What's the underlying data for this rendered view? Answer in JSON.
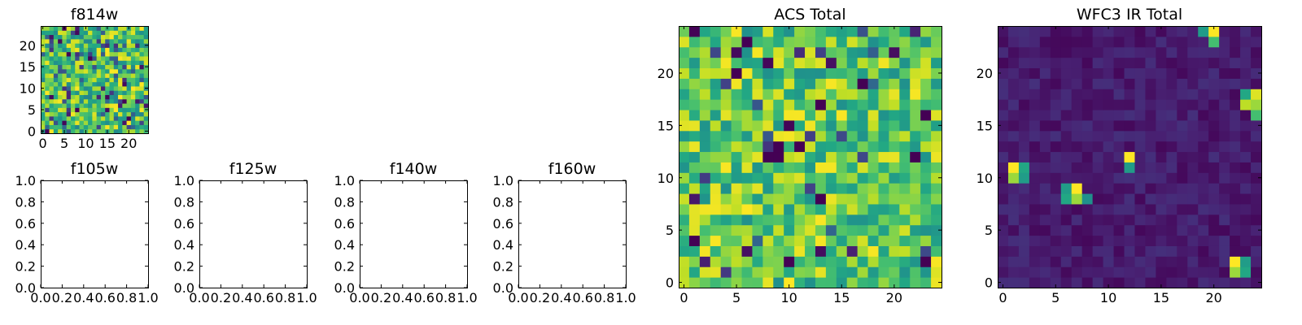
{
  "chart_data": [
    {
      "type": "heatmap",
      "title": "f814w",
      "grid_size": [
        25,
        25
      ],
      "xlim": [
        -0.5,
        24.5
      ],
      "ylim": [
        -0.5,
        24.5
      ],
      "xticks": [
        0,
        5,
        10,
        15,
        20
      ],
      "yticks": [
        0,
        5,
        10,
        15,
        20
      ],
      "colormap": "viridis",
      "pattern": "random high-contrast pixel noise, mostly green-yellow",
      "seed": 814,
      "distribution": {
        "base": 0.45,
        "spread": 0.55,
        "dark_fraction": 0.12
      }
    },
    {
      "type": "heatmap",
      "title": "f105w",
      "empty": true,
      "xlim": [
        0.0,
        1.0
      ],
      "ylim": [
        0.0,
        1.0
      ],
      "xticks": [
        "0.0",
        "0.2",
        "0.4",
        "0.6",
        "0.8",
        "1.0"
      ],
      "yticks": [
        "0.0",
        "0.2",
        "0.4",
        "0.6",
        "0.8",
        "1.0"
      ]
    },
    {
      "type": "heatmap",
      "title": "f125w",
      "empty": true,
      "xlim": [
        0.0,
        1.0
      ],
      "ylim": [
        0.0,
        1.0
      ],
      "xticks": [
        "0.0",
        "0.2",
        "0.4",
        "0.6",
        "0.8",
        "1.0"
      ],
      "yticks": [
        "0.0",
        "0.2",
        "0.4",
        "0.6",
        "0.8",
        "1.0"
      ]
    },
    {
      "type": "heatmap",
      "title": "f140w",
      "empty": true,
      "xlim": [
        0.0,
        1.0
      ],
      "ylim": [
        0.0,
        1.0
      ],
      "xticks": [
        "0.0",
        "0.2",
        "0.4",
        "0.6",
        "0.8",
        "1.0"
      ],
      "yticks": [
        "0.0",
        "0.2",
        "0.4",
        "0.6",
        "0.8",
        "1.0"
      ]
    },
    {
      "type": "heatmap",
      "title": "f160w",
      "empty": true,
      "xlim": [
        0.0,
        1.0
      ],
      "ylim": [
        0.0,
        1.0
      ],
      "xticks": [
        "0.0",
        "0.2",
        "0.4",
        "0.6",
        "0.8",
        "1.0"
      ],
      "yticks": [
        "0.0",
        "0.2",
        "0.4",
        "0.6",
        "0.8",
        "1.0"
      ]
    },
    {
      "type": "heatmap",
      "title": "ACS Total",
      "grid_size": [
        25,
        25
      ],
      "xlim": [
        -0.5,
        24.5
      ],
      "ylim": [
        -0.5,
        24.5
      ],
      "xticks": [
        0,
        5,
        10,
        15,
        20
      ],
      "yticks": [
        0,
        5,
        10,
        15,
        20
      ],
      "colormap": "viridis",
      "pattern": "random pixel noise, predominantly green-yellow with scattered dark pixels",
      "seed": 2024,
      "distribution": {
        "base": 0.5,
        "spread": 0.5,
        "dark_fraction": 0.05
      },
      "dark_pixels": [
        [
          9,
          13
        ],
        [
          8,
          12
        ],
        [
          9,
          12
        ],
        [
          11,
          13
        ],
        [
          13,
          17
        ],
        [
          13,
          8
        ],
        [
          17,
          19
        ],
        [
          23,
          16
        ],
        [
          22,
          12
        ],
        [
          5,
          20
        ],
        [
          6,
          23
        ],
        [
          23,
          2
        ]
      ]
    },
    {
      "type": "heatmap",
      "title": "WFC3 IR Total",
      "grid_size": [
        25,
        25
      ],
      "xlim": [
        -0.5,
        24.5
      ],
      "ylim": [
        -0.5,
        24.5
      ],
      "xticks": [
        0,
        5,
        10,
        15,
        20
      ],
      "yticks": [
        0,
        5,
        10,
        15,
        20
      ],
      "colormap": "viridis",
      "pattern": "low-level dark purple noise with a few bright sources",
      "seed": 160,
      "distribution": {
        "base": 0.02,
        "spread": 0.12,
        "dark_fraction": 0.0
      },
      "bright_pixels": [
        [
          20,
          24,
          1.0
        ],
        [
          19,
          24,
          0.55
        ],
        [
          20,
          23,
          0.7
        ],
        [
          24,
          18,
          0.95
        ],
        [
          23,
          18,
          0.6
        ],
        [
          24,
          17,
          0.85
        ],
        [
          23,
          17,
          0.9
        ],
        [
          24,
          16,
          0.7
        ],
        [
          1,
          11,
          1.0
        ],
        [
          2,
          11,
          0.6
        ],
        [
          1,
          10,
          0.85
        ],
        [
          2,
          10,
          0.55
        ],
        [
          12,
          12,
          1.0
        ],
        [
          12,
          11,
          0.55
        ],
        [
          7,
          9,
          1.0
        ],
        [
          6,
          9,
          0.55
        ],
        [
          7,
          8,
          0.85
        ],
        [
          6,
          8,
          0.6
        ],
        [
          8,
          8,
          0.5
        ],
        [
          22,
          2,
          1.0
        ],
        [
          22,
          1,
          0.85
        ],
        [
          23,
          2,
          0.55
        ],
        [
          23,
          1,
          0.6
        ]
      ]
    }
  ]
}
